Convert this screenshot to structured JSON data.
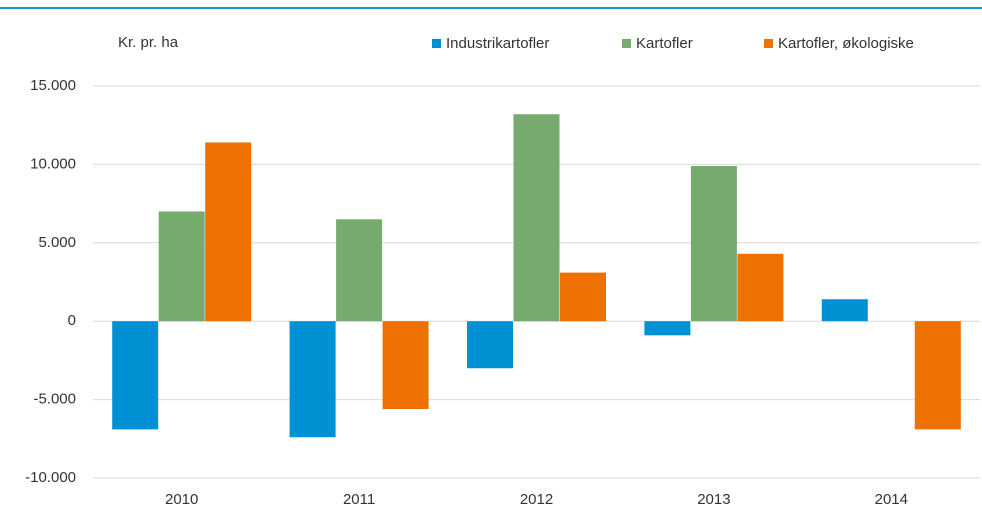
{
  "chart_data": {
    "type": "bar",
    "y_axis_label": "Kr. pr. ha",
    "categories": [
      "2010",
      "2011",
      "2012",
      "2013",
      "2014"
    ],
    "series": [
      {
        "name": "Industrikartofler",
        "color": "#0090d4",
        "values": [
          -6900,
          -7400,
          -3000,
          -900,
          1400
        ]
      },
      {
        "name": "Kartofler",
        "color": "#76ab6e",
        "values": [
          7000,
          6500,
          13200,
          9900,
          0
        ]
      },
      {
        "name": "Kartofler, økologiske",
        "color": "#ee7100",
        "values": [
          11400,
          -5600,
          3100,
          4300,
          -6900
        ]
      }
    ],
    "ylim": [
      -10000,
      15000
    ],
    "yticks": [
      {
        "value": -10000,
        "label": "-10.000"
      },
      {
        "value": -5000,
        "label": "-5.000"
      },
      0,
      {
        "value": 5000,
        "label": "5.000"
      },
      {
        "value": 10000,
        "label": "10.000"
      },
      {
        "value": 15000,
        "label": "15.000"
      }
    ],
    "grid": true,
    "legend": "top"
  }
}
